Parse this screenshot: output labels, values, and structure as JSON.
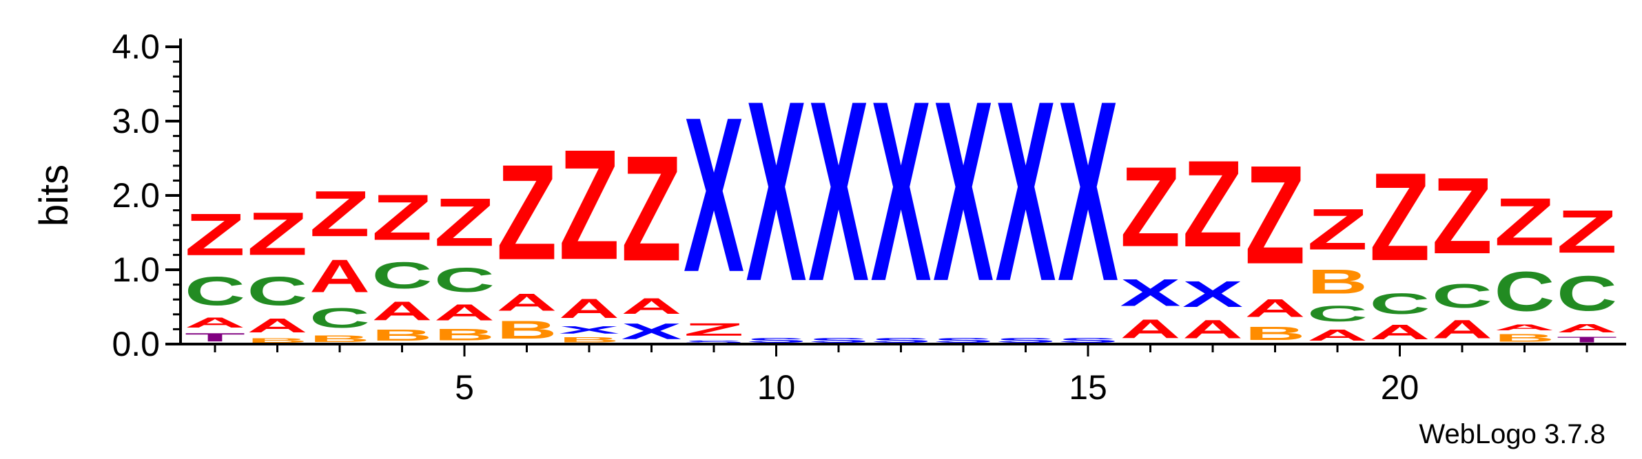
{
  "chart_data": {
    "type": "sequence-logo",
    "ylabel": "bits",
    "ylim": [
      0,
      4
    ],
    "y_ticks": [
      "0.0",
      "1.0",
      "2.0",
      "3.0",
      "4.0"
    ],
    "x_ticks": [
      {
        "pos": 5,
        "label": "5"
      },
      {
        "pos": 10,
        "label": "10"
      },
      {
        "pos": 15,
        "label": "15"
      },
      {
        "pos": 20,
        "label": "20"
      }
    ],
    "credit": "WebLogo 3.7.8",
    "colors": {
      "Z": "#ff0000",
      "A": "#ff0000",
      "C": "#228b22",
      "B": "#ff8c00",
      "X": "#0000ff",
      "S": "#0000ff",
      "T": "#800080"
    },
    "positions": [
      [
        [
          "T",
          0.18
        ],
        [
          "A",
          0.22
        ],
        [
          "C",
          0.62
        ],
        [
          "Z",
          0.9
        ]
      ],
      [
        [
          "B",
          0.1
        ],
        [
          "A",
          0.3
        ],
        [
          "C",
          0.62
        ],
        [
          "Z",
          0.92
        ]
      ],
      [
        [
          "B",
          0.14
        ],
        [
          "C",
          0.42
        ],
        [
          "A",
          0.7
        ],
        [
          "Z",
          0.98
        ]
      ],
      [
        [
          "B",
          0.24
        ],
        [
          "A",
          0.4
        ],
        [
          "C",
          0.57
        ],
        [
          "Z",
          0.98
        ]
      ],
      [
        [
          "B",
          0.25
        ],
        [
          "A",
          0.35
        ],
        [
          "C",
          0.52
        ],
        [
          "Z",
          1.03
        ]
      ],
      [
        [
          "B",
          0.38
        ],
        [
          "A",
          0.36
        ],
        [
          "Z",
          2.05
        ]
      ],
      [
        [
          "B",
          0.11
        ],
        [
          "X",
          0.16
        ],
        [
          "A",
          0.41
        ],
        [
          "Z",
          2.37
        ]
      ],
      [
        [
          "X",
          0.34
        ],
        [
          "A",
          0.34
        ],
        [
          "Z",
          2.27
        ]
      ],
      [
        [
          "S",
          0.06
        ],
        [
          "Z",
          0.27
        ],
        [
          "X",
          3.33
        ]
      ],
      [
        [
          "S",
          0.1
        ],
        [
          "X",
          3.88
        ]
      ],
      [
        [
          "S",
          0.1
        ],
        [
          "X",
          3.88
        ]
      ],
      [
        [
          "S",
          0.1
        ],
        [
          "X",
          3.88
        ]
      ],
      [
        [
          "S",
          0.1
        ],
        [
          "X",
          3.88
        ]
      ],
      [
        [
          "S",
          0.1
        ],
        [
          "X",
          3.88
        ]
      ],
      [
        [
          "S",
          0.1
        ],
        [
          "X",
          3.88
        ]
      ],
      [
        [
          "A",
          0.4
        ],
        [
          "X",
          0.58
        ],
        [
          "Z",
          1.72
        ]
      ],
      [
        [
          "A",
          0.39
        ],
        [
          "X",
          0.56
        ],
        [
          "Z",
          1.86
        ]
      ],
      [
        [
          "B",
          0.29
        ],
        [
          "A",
          0.38
        ],
        [
          "Z",
          2.12
        ]
      ],
      [
        [
          "A",
          0.24
        ],
        [
          "C",
          0.34
        ],
        [
          "B",
          0.52
        ],
        [
          "Z",
          0.88
        ]
      ],
      [
        [
          "A",
          0.32
        ],
        [
          "C",
          0.44
        ],
        [
          "Z",
          1.89
        ]
      ],
      [
        [
          "A",
          0.39
        ],
        [
          "C",
          0.51
        ],
        [
          "Z",
          1.64
        ]
      ],
      [
        [
          "B",
          0.16
        ],
        [
          "A",
          0.12
        ],
        [
          "C",
          0.85
        ],
        [
          "Z",
          1.02
        ]
      ],
      [
        [
          "T",
          0.12
        ],
        [
          "A",
          0.18
        ],
        [
          "C",
          0.75
        ],
        [
          "Z",
          0.92
        ]
      ]
    ]
  }
}
